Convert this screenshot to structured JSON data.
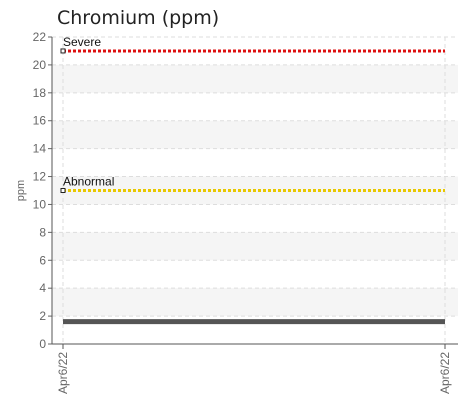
{
  "chart_data": {
    "type": "line",
    "title": "Chromium (ppm)",
    "xlabel": "",
    "ylabel": "ppm",
    "ylim": [
      0,
      22
    ],
    "yticks": [
      0,
      2,
      4,
      6,
      8,
      10,
      12,
      14,
      16,
      18,
      20,
      22
    ],
    "x_tick_labels": [
      "Apr6/22",
      "Apr6/22"
    ],
    "grid": true,
    "reference_lines": [
      {
        "label": "Severe",
        "value": 21,
        "color": "#dd1111"
      },
      {
        "label": "Abnormal",
        "value": 11,
        "color": "#e8c800"
      }
    ],
    "series": [
      {
        "values": [
          1.6,
          1.6
        ],
        "color": "#555555"
      }
    ]
  }
}
